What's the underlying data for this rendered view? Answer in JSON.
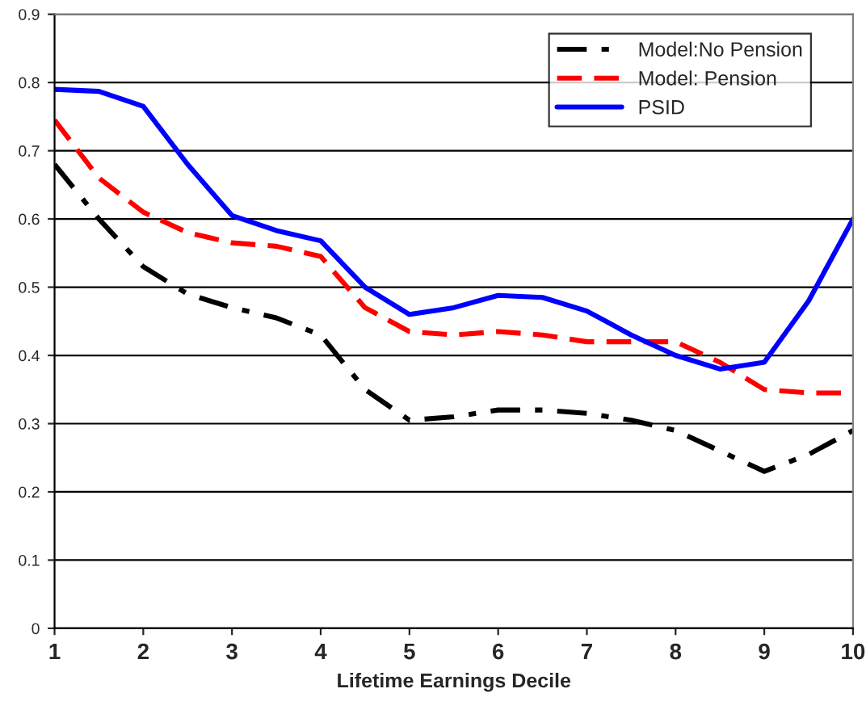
{
  "chart_data": {
    "type": "line",
    "xlabel": "Lifetime Earnings Decile",
    "x": [
      1,
      1.5,
      2,
      2.5,
      3,
      3.5,
      4,
      4.5,
      5,
      5.5,
      6,
      6.5,
      7,
      7.5,
      8,
      8.5,
      9,
      9.5,
      10
    ],
    "series": [
      {
        "name": "Model:No Pension",
        "color": "#000000",
        "line_style": "dashdot",
        "values": [
          0.68,
          0.6,
          0.53,
          0.49,
          0.47,
          0.455,
          0.43,
          0.35,
          0.305,
          0.31,
          0.32,
          0.32,
          0.315,
          0.305,
          0.29,
          0.26,
          0.23,
          0.255,
          0.29
        ]
      },
      {
        "name": "Model: Pension",
        "color": "#ff0000",
        "line_style": "dashed",
        "values": [
          0.745,
          0.66,
          0.61,
          0.58,
          0.565,
          0.56,
          0.545,
          0.47,
          0.435,
          0.43,
          0.435,
          0.43,
          0.42,
          0.42,
          0.42,
          0.39,
          0.35,
          0.345,
          0.345
        ]
      },
      {
        "name": "PSID",
        "color": "#0000ff",
        "line_style": "solid",
        "values": [
          0.79,
          0.787,
          0.765,
          0.68,
          0.605,
          0.583,
          0.568,
          0.5,
          0.46,
          0.47,
          0.488,
          0.485,
          0.465,
          0.43,
          0.4,
          0.38,
          0.39,
          0.48,
          0.6
        ]
      }
    ],
    "xlim": [
      1,
      10
    ],
    "xticks": [
      1,
      2,
      3,
      4,
      5,
      6,
      7,
      8,
      9,
      10
    ],
    "ylim": [
      0,
      0.9
    ],
    "yticks": [
      0,
      0.1,
      0.2,
      0.3,
      0.4,
      0.5,
      0.6,
      0.7,
      0.8,
      0.9
    ],
    "grid": "y",
    "legend": "top right"
  }
}
